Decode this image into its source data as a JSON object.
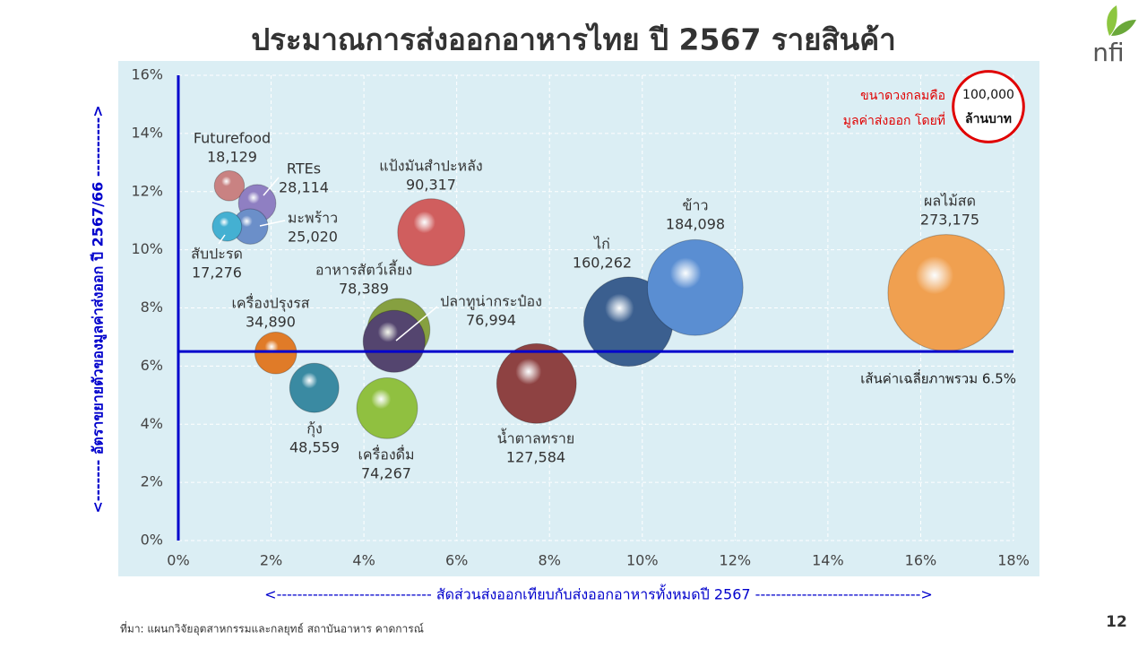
{
  "chart_data": {
    "type": "scatter",
    "title": "ประมาณการส่งออกอาหารไทย ปี 2567 รายสินค้า",
    "x_label": "<------------------------------  สัดส่วนส่งออกเทียบกับส่งออกอาหารทั้งหมดปี 2567 -------------------------------->",
    "y_label": "<-------  อัตราขยายตัวของมูลค่าส่งออก ปี 2567/66 ---------->",
    "xlim": [
      0,
      18
    ],
    "ylim": [
      0,
      16
    ],
    "xticks": [
      {
        "value": 0,
        "label": "0%"
      },
      {
        "value": 2,
        "label": "2%"
      },
      {
        "value": 4,
        "label": "4%"
      },
      {
        "value": 6,
        "label": "6%"
      },
      {
        "value": 8,
        "label": "8%"
      },
      {
        "value": 10,
        "label": "10%"
      },
      {
        "value": 12,
        "label": "12%"
      },
      {
        "value": 14,
        "label": "14%"
      },
      {
        "value": 16,
        "label": "16%"
      },
      {
        "value": 18,
        "label": "18%"
      }
    ],
    "yticks": [
      {
        "value": 0,
        "label": "0%"
      },
      {
        "value": 2,
        "label": "2%"
      },
      {
        "value": 4,
        "label": "4%"
      },
      {
        "value": 6,
        "label": "6%"
      },
      {
        "value": 8,
        "label": "8%"
      },
      {
        "value": 10,
        "label": "10%"
      },
      {
        "value": 12,
        "label": "12%"
      },
      {
        "value": 14,
        "label": "14%"
      },
      {
        "value": 16,
        "label": "16%"
      }
    ],
    "grid": true,
    "average_line": {
      "value": 6.5,
      "label": "เส้นค่าเฉลี่ยภาพรวม 6.5%",
      "color": "#0000cc"
    },
    "size_legend": {
      "text": [
        "ขนาดวงกลมคือ",
        "มูลค่าส่งออก โดยที่"
      ],
      "value": 100000,
      "value_label": "100,000",
      "unit": "ล้านบาท",
      "color": "#e00000"
    },
    "points": [
      {
        "name": "Futurefood",
        "x": 1.1,
        "y": 12.2,
        "size": 18129,
        "size_label": "18,129",
        "color": "#c98282"
      },
      {
        "name": "RTEs",
        "x": 1.7,
        "y": 11.6,
        "size": 28114,
        "size_label": "28,114",
        "color": "#8f7fc2"
      },
      {
        "name": "มะพร้าว",
        "x": 1.55,
        "y": 10.8,
        "size": 25020,
        "size_label": "25,020",
        "color": "#6b8fc9"
      },
      {
        "name": "สับปะรด",
        "x": 1.05,
        "y": 10.8,
        "size": 17276,
        "size_label": "17,276",
        "color": "#44b0d2"
      },
      {
        "name": "เครื่องปรุงรส",
        "x": 2.1,
        "y": 6.45,
        "size": 34890,
        "size_label": "34,890",
        "color": "#e07b28"
      },
      {
        "name": "กุ้ง",
        "x": 2.93,
        "y": 5.25,
        "size": 48559,
        "size_label": "48,559",
        "color": "#3a8aa2"
      },
      {
        "name": "อาหารสัตว์เลี้ยง",
        "x": 4.75,
        "y": 7.25,
        "size": 78389,
        "size_label": "78,389",
        "color": "#86a040"
      },
      {
        "name": "ปลาทูน่ากระป๋อง",
        "x": 4.65,
        "y": 6.85,
        "size": 76994,
        "size_label": "76,994",
        "color": "#54456f"
      },
      {
        "name": "เครื่องดื่ม",
        "x": 4.5,
        "y": 4.55,
        "size": 74267,
        "size_label": "74,267",
        "color": "#90c040"
      },
      {
        "name": "แป้งมันสำปะหลัง",
        "x": 5.45,
        "y": 10.6,
        "size": 90317,
        "size_label": "90,317",
        "color": "#d05e5e"
      },
      {
        "name": "น้ำตาลทราย",
        "x": 7.72,
        "y": 5.4,
        "size": 127584,
        "size_label": "127,584",
        "color": "#8e4242"
      },
      {
        "name": "ไก่",
        "x": 9.7,
        "y": 7.53,
        "size": 160262,
        "size_label": "160,262",
        "color": "#3b5f8f"
      },
      {
        "name": "ข้าว",
        "x": 11.14,
        "y": 8.7,
        "size": 184098,
        "size_label": "184,098",
        "color": "#5a8ed2"
      },
      {
        "name": "ผลไม้สด",
        "x": 16.55,
        "y": 8.52,
        "size": 273175,
        "size_label": "273,175",
        "color": "#f0a050"
      }
    ]
  },
  "footer": {
    "source": "ที่มา: แผนกวิจัยอุตสาหกรรมและกลยุทธ์   สถาบันอาหาร คาดการณ์",
    "page_number": "12",
    "logo": "nfi"
  }
}
